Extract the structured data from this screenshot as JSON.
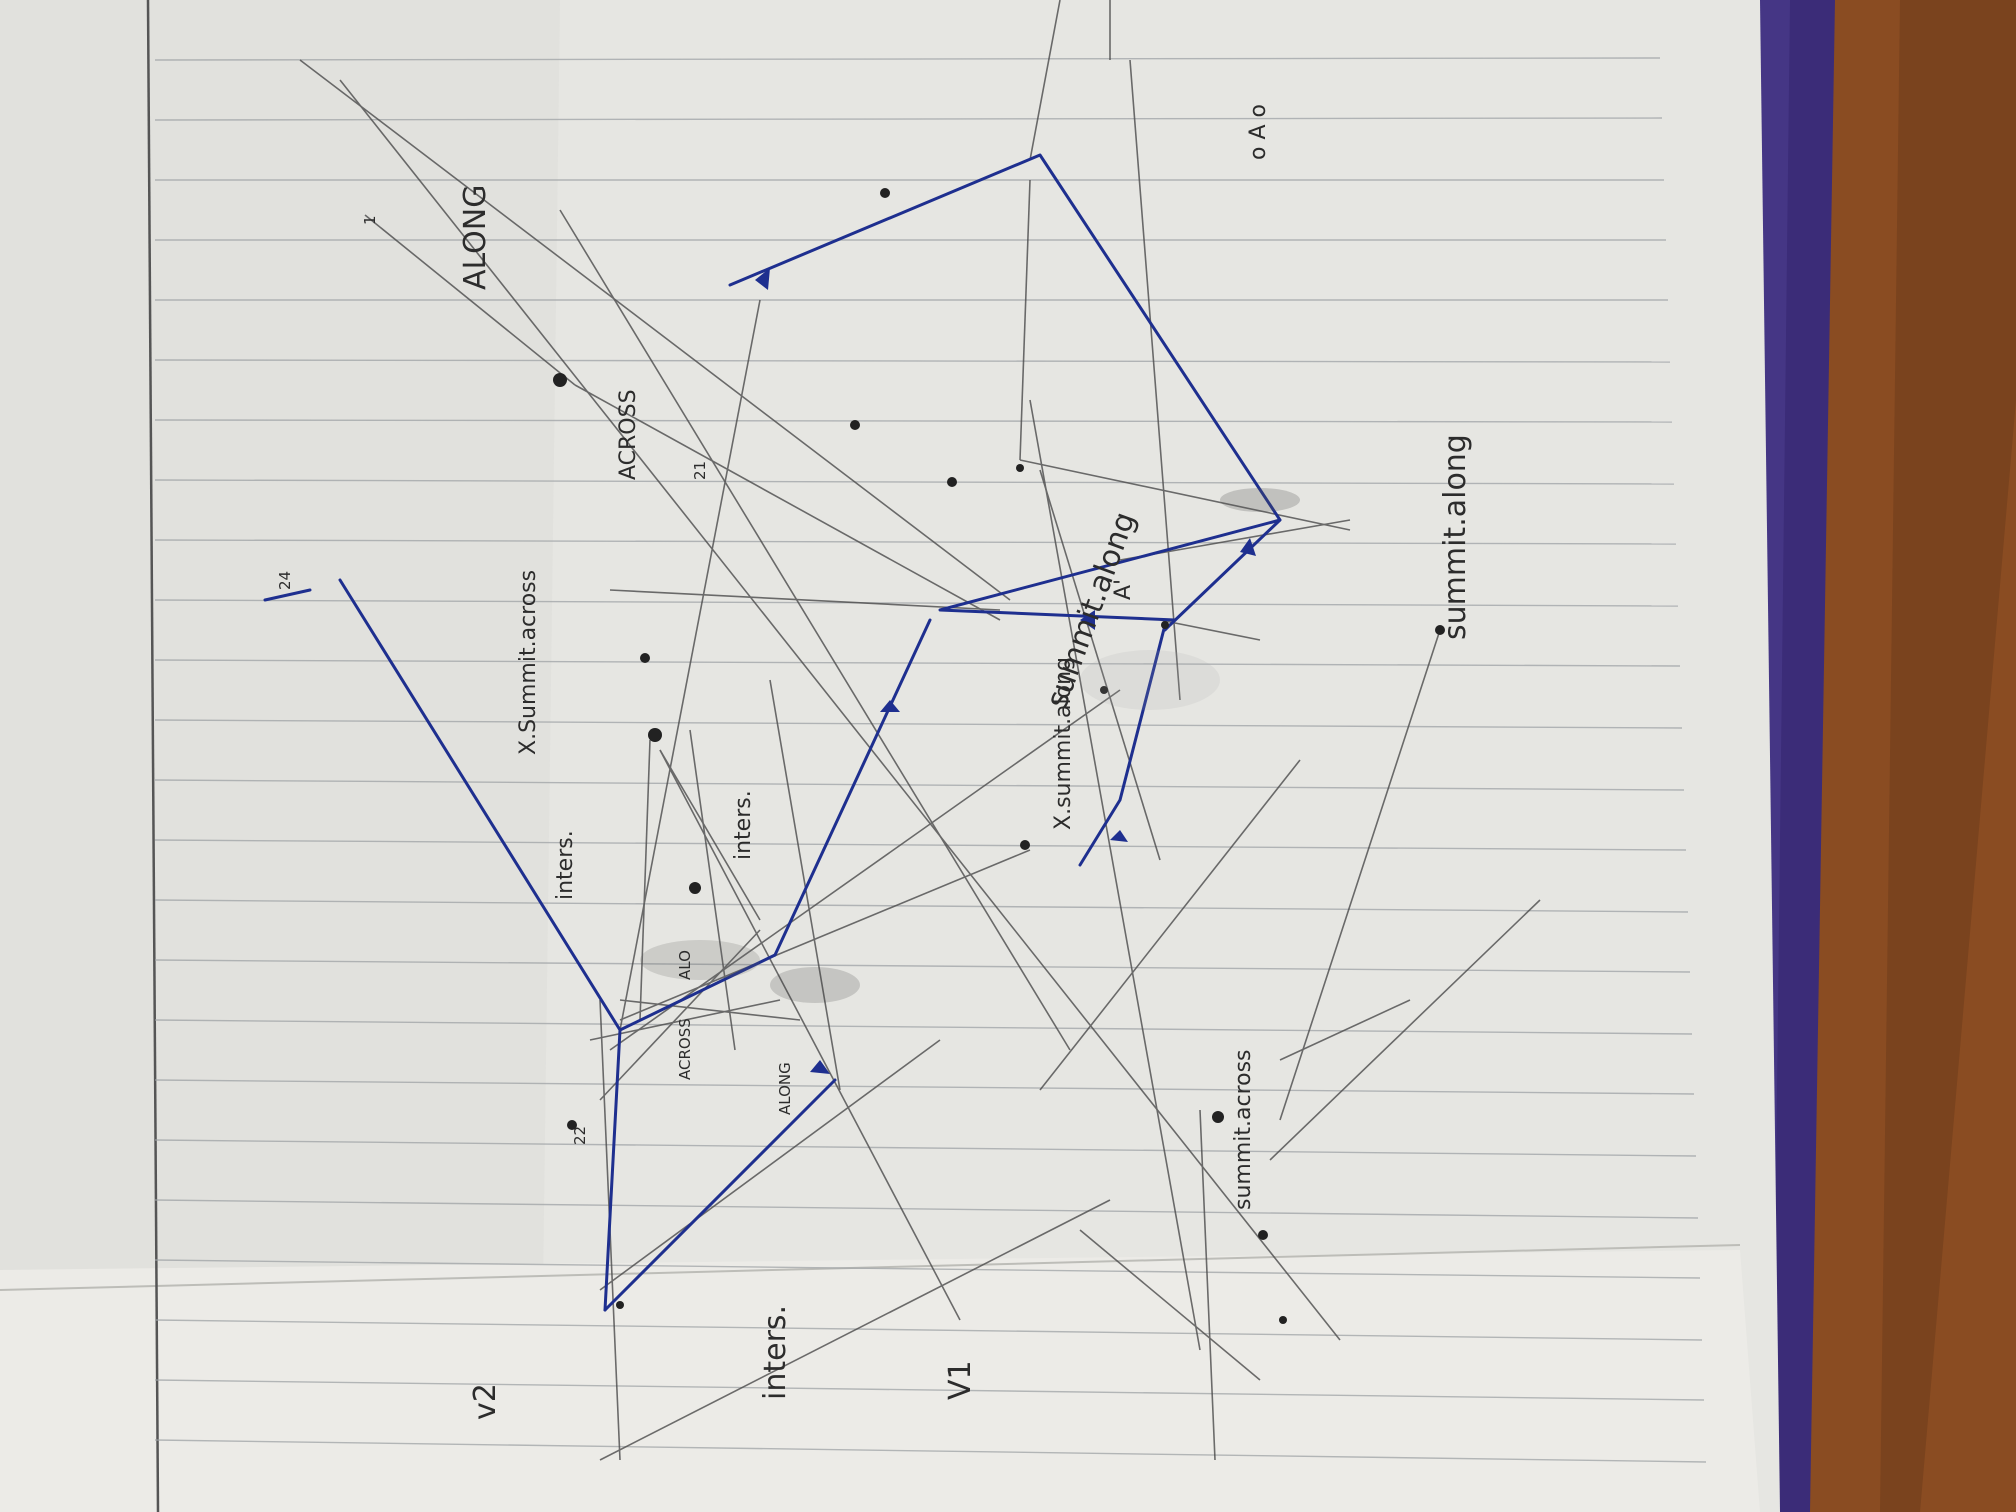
{
  "photo": {
    "colors": {
      "desk": "#7a4420",
      "notebook_cover": "#3b2c78",
      "paper": "#e6e6e2",
      "rule_line": "#9fa3a6",
      "pencil": "#4b4b4b",
      "ink": "#1e2f8f"
    },
    "labels": {
      "along_top": "ALONG",
      "across_top": "ACROSS",
      "x_summit_across": "X.Summit.across",
      "inters_left": "inters.",
      "inters_right": "inters.",
      "alo": "ALO",
      "across_mid": "ACROSS",
      "along_mid": "ALONG",
      "x_summit_along": "X.summit.along",
      "summit_along_center": "summit.along",
      "summit_along_right": "summit.along",
      "summit_across": "summit.across",
      "inters_bottom": "inters.",
      "v2": "v2",
      "v1": "V1",
      "mark_1": "1",
      "mark_21": "21",
      "mark_24": "24",
      "mark_22": "22",
      "mark_a": "A'",
      "mark_dots": "o A o"
    }
  }
}
